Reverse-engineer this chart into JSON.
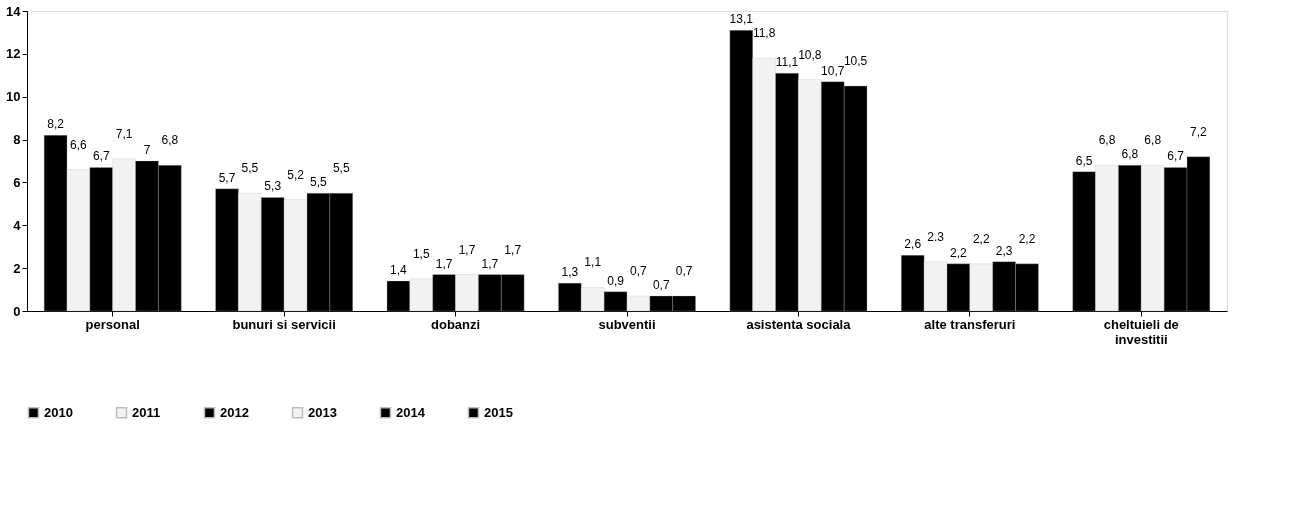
{
  "chart_data": {
    "type": "bar",
    "categories": [
      "personal",
      "bunuri si servicii",
      "dobanzi",
      "subventii",
      "asistenta sociala",
      "alte transferuri",
      "cheltuieli de investitii"
    ],
    "series": [
      {
        "name": "2010",
        "color": "#000000",
        "values": [
          8.2,
          5.7,
          1.4,
          1.3,
          13.1,
          2.6,
          6.5
        ],
        "value_labels": [
          "8,2",
          "5,7",
          "1,4",
          "1,3",
          "13,1",
          "2,6",
          "6,5"
        ]
      },
      {
        "name": "2011",
        "color": "#f2f2f2",
        "values": [
          6.6,
          5.5,
          1.5,
          1.1,
          11.8,
          2.3,
          6.8
        ],
        "value_labels": [
          "6,6",
          "5,5",
          "1,5",
          "1,1",
          "11,8",
          "2.3",
          "6,8"
        ]
      },
      {
        "name": "2012",
        "color": "#000000",
        "values": [
          6.7,
          5.3,
          1.7,
          0.9,
          11.1,
          2.2,
          6.8
        ],
        "value_labels": [
          "6,7",
          "5,3",
          "1,7",
          "0,9",
          "11,1",
          "2,2",
          "6,8"
        ]
      },
      {
        "name": "2013",
        "color": "#f2f2f2",
        "values": [
          7.1,
          5.2,
          1.7,
          0.7,
          10.8,
          2.2,
          6.8
        ],
        "value_labels": [
          "7,1",
          "5,2",
          "1,7",
          "0,7",
          "10,8",
          "2,2",
          "6,8"
        ]
      },
      {
        "name": "2014",
        "color": "#000000",
        "values": [
          7,
          5.5,
          1.7,
          0.7,
          10.7,
          2.3,
          6.7
        ],
        "value_labels": [
          "7",
          "5,5",
          "1,7",
          "0,7",
          "10,7",
          "2,3",
          "6,7"
        ]
      },
      {
        "name": "2015",
        "color": "#000000",
        "values": [
          6.8,
          5.5,
          1.7,
          0.7,
          10.5,
          2.2,
          7.2
        ],
        "value_labels": [
          "6,8",
          "5,5",
          "1,7",
          "0,7",
          "10,5",
          "2,2",
          "7,2"
        ]
      }
    ],
    "ylim": [
      0,
      14
    ],
    "yticks": [
      0,
      2,
      4,
      6,
      8,
      10,
      12,
      14
    ],
    "grid": false,
    "legend": "bottom"
  }
}
